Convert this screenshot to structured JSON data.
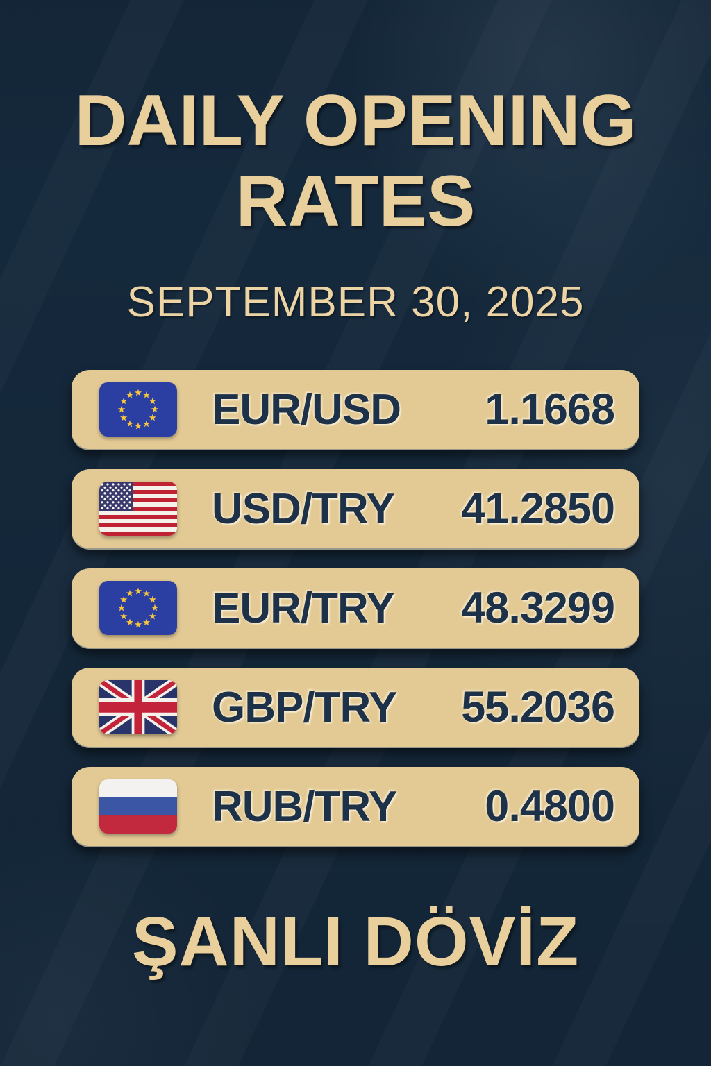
{
  "page": {
    "title_line1": "DAILY OPENING",
    "title_line2": "RATES",
    "date": "SEPTEMBER 30, 2025",
    "brand": "ŞANLI DÖVİZ"
  },
  "colors": {
    "background": "#15293c",
    "card": "#e3ca95",
    "text_dark": "#1d3148",
    "accent_gold": "#e9cf9b",
    "flag_eu_blue": "#2b3fa3",
    "flag_star_gold": "#f6c53e",
    "flag_us_red": "#bf2333",
    "flag_us_blue": "#3a3a6c",
    "flag_uk_navy": "#28346a",
    "flag_uk_red": "#c4233c",
    "flag_ru_blue": "#3c56a6",
    "flag_ru_red": "#c2293e"
  },
  "rates": [
    {
      "flag": "eu-flag",
      "pair": "EUR/USD",
      "value": "1.1668"
    },
    {
      "flag": "us-flag",
      "pair": "USD/TRY",
      "value": "41.2850"
    },
    {
      "flag": "eu-flag",
      "pair": "EUR/TRY",
      "value": "48.3299"
    },
    {
      "flag": "gb-flag",
      "pair": "GBP/TRY",
      "value": "55.2036"
    },
    {
      "flag": "ru-flag",
      "pair": "RUB/TRY",
      "value": "0.4800"
    }
  ]
}
